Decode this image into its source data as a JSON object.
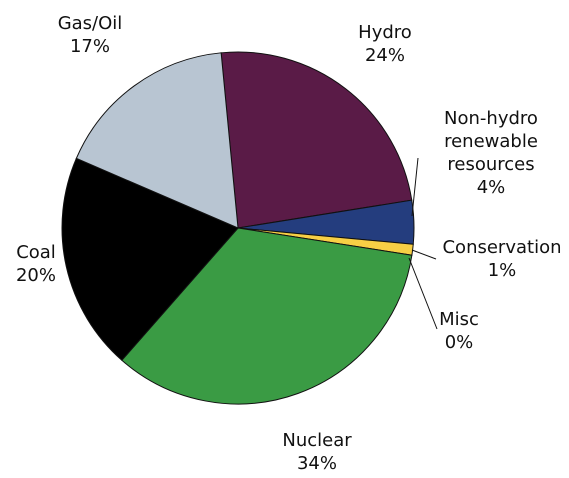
{
  "chart_data": {
    "type": "pie",
    "title": "",
    "slices": [
      {
        "label": "Hydro",
        "value": 24,
        "value_label": "24%",
        "color": "#5a1b47"
      },
      {
        "label": "Non-hydro renewable resources",
        "label_lines": [
          "Non-hydro",
          "renewable",
          "resources"
        ],
        "value": 4,
        "value_label": "4%",
        "color": "#243d7e"
      },
      {
        "label": "Conservation",
        "value": 1,
        "value_label": "1%",
        "color": "#f7cf45"
      },
      {
        "label": "Misc",
        "value": 0,
        "value_label": "0%",
        "color": "#ffffff"
      },
      {
        "label": "Nuclear",
        "value": 34,
        "value_label": "34%",
        "color": "#3a9b44"
      },
      {
        "label": "Coal",
        "value": 20,
        "value_label": "20%",
        "color": "#000000"
      },
      {
        "label": "Gas/Oil",
        "value": 17,
        "value_label": "17%",
        "color": "#b8c5d2"
      }
    ]
  }
}
